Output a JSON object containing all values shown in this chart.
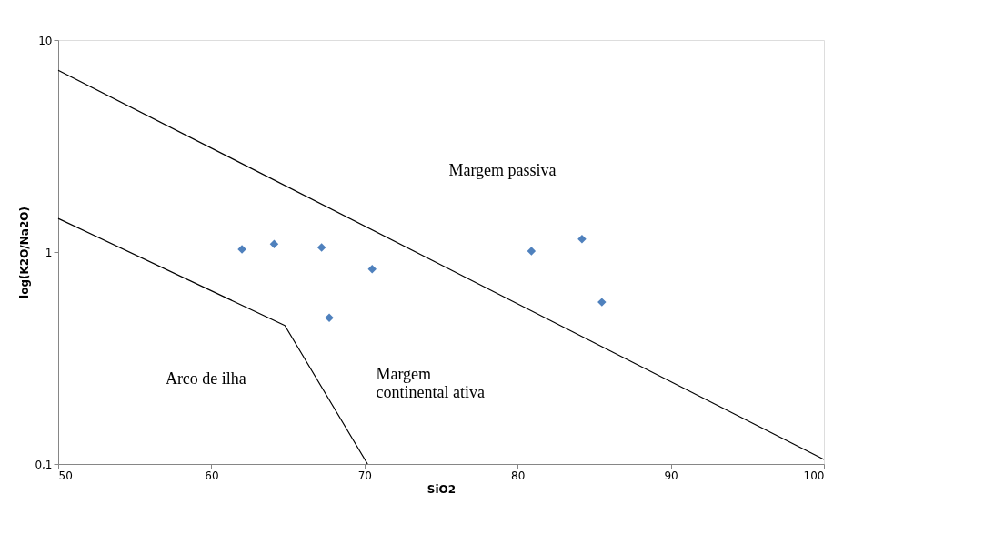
{
  "chart_data": {
    "type": "scatter",
    "xlabel": "SiO2",
    "ylabel": "log(K2O/Na2O)",
    "log": "y",
    "grid": false,
    "xlim": [
      50,
      100
    ],
    "xticks": [
      50,
      60,
      70,
      80,
      90,
      100
    ],
    "ylim": [
      0.1,
      10
    ],
    "yticks": [
      {
        "value": 0.1,
        "label": "0,1"
      },
      1,
      10
    ],
    "series": [
      {
        "color": "#4f81bd",
        "marker": "diamond",
        "x": [
          62.0,
          64.1,
          67.2,
          70.5,
          67.7,
          80.9,
          84.2,
          85.5
        ],
        "values": [
          1.03,
          1.09,
          1.05,
          0.83,
          0.49,
          1.01,
          1.15,
          0.58
        ]
      },
      {
        "type": "line",
        "color": "#000000",
        "line_style": "solid",
        "x": [
          50,
          100
        ],
        "values": [
          7.2,
          0.105
        ]
      },
      {
        "type": "line",
        "color": "#000000",
        "line_style": "solid",
        "x": [
          50,
          64.8,
          70.2
        ],
        "values": [
          1.44,
          0.45,
          0.1
        ]
      }
    ],
    "annotations": [
      "Margem passiva",
      "Arco de ilha",
      "Margem\ncontinental ativa"
    ]
  }
}
